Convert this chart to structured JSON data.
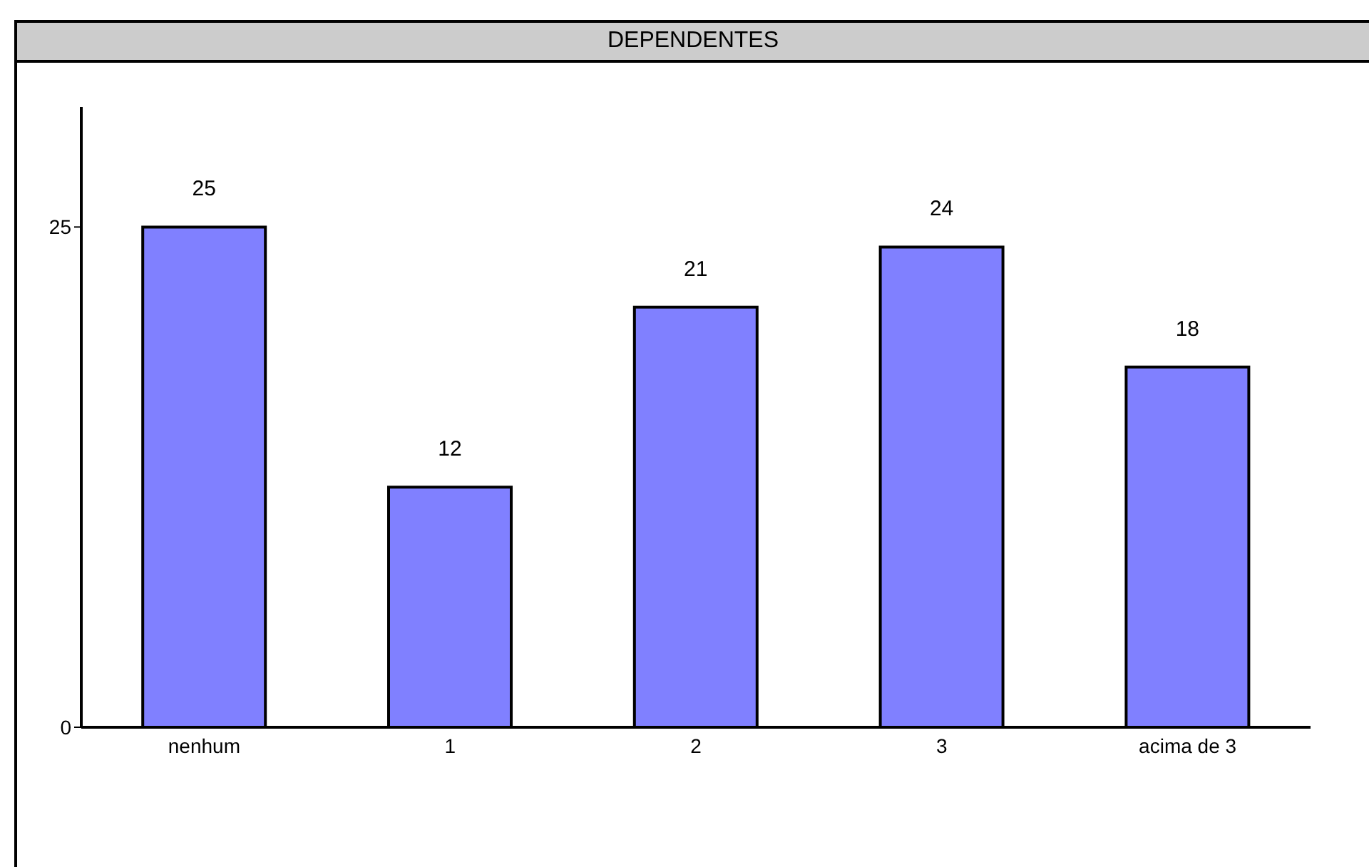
{
  "chart_data": {
    "type": "bar",
    "title": "DEPENDENTES",
    "categories": [
      "nenhum",
      "1",
      "2",
      "3",
      "acima de 3"
    ],
    "values": [
      25,
      12,
      21,
      24,
      18
    ],
    "color": "#8080ff",
    "ylim": [
      0,
      31
    ],
    "yticks": [
      0,
      25
    ],
    "data_labels": true
  }
}
